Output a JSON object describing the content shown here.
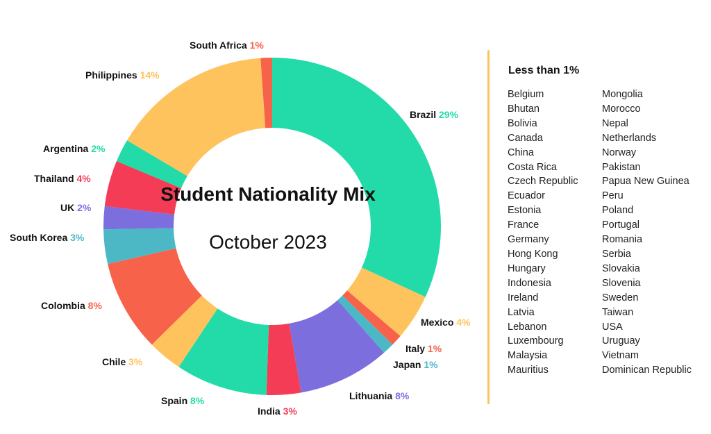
{
  "chart_data": {
    "type": "pie",
    "title": "Student Nationality Mix",
    "subtitle": "October 2023",
    "slices": [
      {
        "label": "Brazil",
        "value": 29,
        "color": "#22dba8"
      },
      {
        "label": "Mexico",
        "value": 4,
        "color": "#fec35d"
      },
      {
        "label": "Italy",
        "value": 1,
        "color": "#f7634a"
      },
      {
        "label": "Japan",
        "value": 1,
        "color": "#4cb8c6"
      },
      {
        "label": "Lithuania",
        "value": 8,
        "color": "#7d6ede"
      },
      {
        "label": "India",
        "value": 3,
        "color": "#f43c57"
      },
      {
        "label": "Spain",
        "value": 8,
        "color": "#22dba8"
      },
      {
        "label": "Chile",
        "value": 3,
        "color": "#fec35d"
      },
      {
        "label": "Colombia",
        "value": 8,
        "color": "#f7634a"
      },
      {
        "label": "South Korea",
        "value": 3,
        "color": "#4cb8c6"
      },
      {
        "label": "UK",
        "value": 2,
        "color": "#7d6ede"
      },
      {
        "label": "Thailand",
        "value": 4,
        "color": "#f43c57"
      },
      {
        "label": "Argentina",
        "value": 2,
        "color": "#22dba8"
      },
      {
        "label": "Philippines",
        "value": 14,
        "color": "#fec35d"
      },
      {
        "label": "South Africa",
        "value": 1,
        "color": "#f7634a"
      }
    ],
    "legend": {
      "title": "Less than 1%",
      "placement": "right",
      "column1": [
        "Belgium",
        "Bhutan",
        "Bolivia",
        "Canada",
        "China",
        "Costa Rica",
        "Czech Republic",
        "Ecuador",
        "Estonia",
        "France",
        "Germany",
        "Hong Kong",
        "Hungary",
        "Indonesia",
        "Ireland",
        "Latvia",
        "Lebanon",
        "Luxembourg",
        "Malaysia",
        "Mauritius"
      ],
      "column2": [
        "Mongolia",
        "Morocco",
        "Nepal",
        "Netherlands",
        "Norway",
        "Pakistan",
        "Papua New Guinea",
        "Peru",
        "Poland",
        "Portugal",
        "Romania",
        "Serbia",
        "Slovakia",
        "Slovenia",
        "Sweden",
        "Taiwan",
        "USA",
        "Uruguay",
        "Vietnam",
        "Dominican Republic"
      ]
    }
  },
  "labels": {
    "Brazil": {
      "name": "Brazil",
      "pct": "29%",
      "pct_color": "#22dba8"
    },
    "Mexico": {
      "name": "Mexico",
      "pct": "4%",
      "pct_color": "#fec35d"
    },
    "Italy": {
      "name": "Italy",
      "pct": "1%",
      "pct_color": "#f7634a"
    },
    "Japan": {
      "name": "Japan",
      "pct": "1%",
      "pct_color": "#4cb8c6"
    },
    "Lithuania": {
      "name": "Lithuania",
      "pct": "8%",
      "pct_color": "#7d6ede"
    },
    "India": {
      "name": "India",
      "pct": "3%",
      "pct_color": "#f43c57"
    },
    "Spain": {
      "name": "Spain",
      "pct": "8%",
      "pct_color": "#22dba8"
    },
    "Chile": {
      "name": "Chile",
      "pct": "3%",
      "pct_color": "#fec35d"
    },
    "Colombia": {
      "name": "Colombia",
      "pct": "8%",
      "pct_color": "#f7634a"
    },
    "South Korea": {
      "name": "South Korea",
      "pct": "3%",
      "pct_color": "#4cb8c6"
    },
    "UK": {
      "name": "UK",
      "pct": "2%",
      "pct_color": "#7d6ede"
    },
    "Thailand": {
      "name": "Thailand",
      "pct": "4%",
      "pct_color": "#f43c57"
    },
    "Argentina": {
      "name": "Argentina",
      "pct": "2%",
      "pct_color": "#22dba8"
    },
    "Philippines": {
      "name": "Philippines",
      "pct": "14%",
      "pct_color": "#fec35d"
    },
    "South Africa": {
      "name": "South Africa",
      "pct": "1%",
      "pct_color": "#f7634a"
    }
  }
}
